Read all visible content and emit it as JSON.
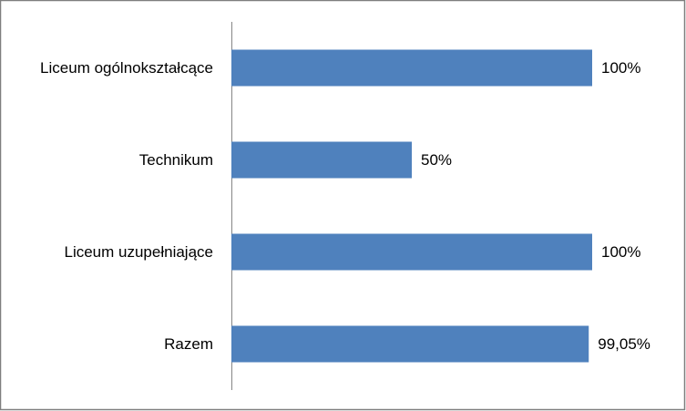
{
  "chart_data": {
    "type": "bar",
    "orientation": "horizontal",
    "categories": [
      "Liceum ogólnokształcące",
      "Technikum",
      "Liceum uzupełniające",
      "Razem"
    ],
    "values": [
      100,
      50,
      100,
      99.05
    ],
    "value_labels": [
      "100%",
      "50%",
      "100%",
      "99,05%"
    ],
    "color": "#4f81bd",
    "xlim": [
      0,
      100
    ]
  }
}
